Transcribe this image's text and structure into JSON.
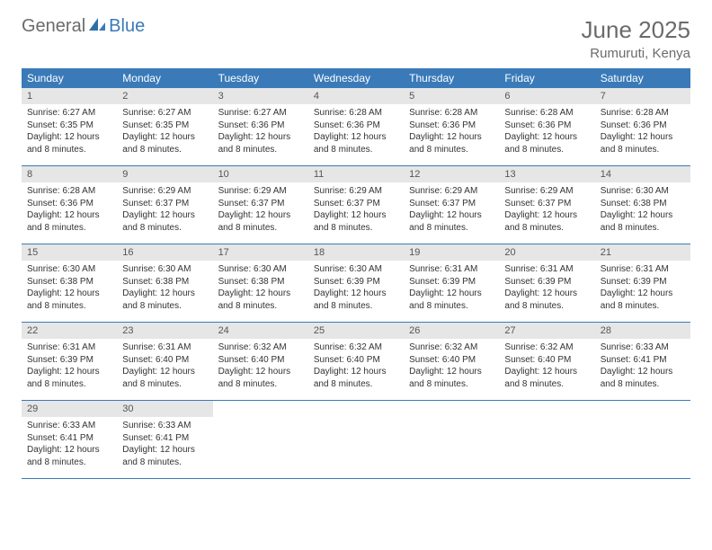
{
  "logo": {
    "general": "General",
    "blue": "Blue"
  },
  "title": {
    "month": "June 2025",
    "location": "Rumuruti, Kenya"
  },
  "colors": {
    "header_bg": "#3a7ab8",
    "header_text": "#ffffff",
    "daynum_bg": "#e6e6e6",
    "daynum_text": "#555555",
    "border": "#3a7ab8",
    "body_text": "#333333",
    "title_text": "#6b6b6b"
  },
  "weekdays": [
    "Sunday",
    "Monday",
    "Tuesday",
    "Wednesday",
    "Thursday",
    "Friday",
    "Saturday"
  ],
  "weeks": [
    [
      {
        "num": "1",
        "sunrise": "6:27 AM",
        "sunset": "6:35 PM",
        "daylight": "12 hours and 8 minutes."
      },
      {
        "num": "2",
        "sunrise": "6:27 AM",
        "sunset": "6:35 PM",
        "daylight": "12 hours and 8 minutes."
      },
      {
        "num": "3",
        "sunrise": "6:27 AM",
        "sunset": "6:36 PM",
        "daylight": "12 hours and 8 minutes."
      },
      {
        "num": "4",
        "sunrise": "6:28 AM",
        "sunset": "6:36 PM",
        "daylight": "12 hours and 8 minutes."
      },
      {
        "num": "5",
        "sunrise": "6:28 AM",
        "sunset": "6:36 PM",
        "daylight": "12 hours and 8 minutes."
      },
      {
        "num": "6",
        "sunrise": "6:28 AM",
        "sunset": "6:36 PM",
        "daylight": "12 hours and 8 minutes."
      },
      {
        "num": "7",
        "sunrise": "6:28 AM",
        "sunset": "6:36 PM",
        "daylight": "12 hours and 8 minutes."
      }
    ],
    [
      {
        "num": "8",
        "sunrise": "6:28 AM",
        "sunset": "6:36 PM",
        "daylight": "12 hours and 8 minutes."
      },
      {
        "num": "9",
        "sunrise": "6:29 AM",
        "sunset": "6:37 PM",
        "daylight": "12 hours and 8 minutes."
      },
      {
        "num": "10",
        "sunrise": "6:29 AM",
        "sunset": "6:37 PM",
        "daylight": "12 hours and 8 minutes."
      },
      {
        "num": "11",
        "sunrise": "6:29 AM",
        "sunset": "6:37 PM",
        "daylight": "12 hours and 8 minutes."
      },
      {
        "num": "12",
        "sunrise": "6:29 AM",
        "sunset": "6:37 PM",
        "daylight": "12 hours and 8 minutes."
      },
      {
        "num": "13",
        "sunrise": "6:29 AM",
        "sunset": "6:37 PM",
        "daylight": "12 hours and 8 minutes."
      },
      {
        "num": "14",
        "sunrise": "6:30 AM",
        "sunset": "6:38 PM",
        "daylight": "12 hours and 8 minutes."
      }
    ],
    [
      {
        "num": "15",
        "sunrise": "6:30 AM",
        "sunset": "6:38 PM",
        "daylight": "12 hours and 8 minutes."
      },
      {
        "num": "16",
        "sunrise": "6:30 AM",
        "sunset": "6:38 PM",
        "daylight": "12 hours and 8 minutes."
      },
      {
        "num": "17",
        "sunrise": "6:30 AM",
        "sunset": "6:38 PM",
        "daylight": "12 hours and 8 minutes."
      },
      {
        "num": "18",
        "sunrise": "6:30 AM",
        "sunset": "6:39 PM",
        "daylight": "12 hours and 8 minutes."
      },
      {
        "num": "19",
        "sunrise": "6:31 AM",
        "sunset": "6:39 PM",
        "daylight": "12 hours and 8 minutes."
      },
      {
        "num": "20",
        "sunrise": "6:31 AM",
        "sunset": "6:39 PM",
        "daylight": "12 hours and 8 minutes."
      },
      {
        "num": "21",
        "sunrise": "6:31 AM",
        "sunset": "6:39 PM",
        "daylight": "12 hours and 8 minutes."
      }
    ],
    [
      {
        "num": "22",
        "sunrise": "6:31 AM",
        "sunset": "6:39 PM",
        "daylight": "12 hours and 8 minutes."
      },
      {
        "num": "23",
        "sunrise": "6:31 AM",
        "sunset": "6:40 PM",
        "daylight": "12 hours and 8 minutes."
      },
      {
        "num": "24",
        "sunrise": "6:32 AM",
        "sunset": "6:40 PM",
        "daylight": "12 hours and 8 minutes."
      },
      {
        "num": "25",
        "sunrise": "6:32 AM",
        "sunset": "6:40 PM",
        "daylight": "12 hours and 8 minutes."
      },
      {
        "num": "26",
        "sunrise": "6:32 AM",
        "sunset": "6:40 PM",
        "daylight": "12 hours and 8 minutes."
      },
      {
        "num": "27",
        "sunrise": "6:32 AM",
        "sunset": "6:40 PM",
        "daylight": "12 hours and 8 minutes."
      },
      {
        "num": "28",
        "sunrise": "6:33 AM",
        "sunset": "6:41 PM",
        "daylight": "12 hours and 8 minutes."
      }
    ],
    [
      {
        "num": "29",
        "sunrise": "6:33 AM",
        "sunset": "6:41 PM",
        "daylight": "12 hours and 8 minutes."
      },
      {
        "num": "30",
        "sunrise": "6:33 AM",
        "sunset": "6:41 PM",
        "daylight": "12 hours and 8 minutes."
      },
      null,
      null,
      null,
      null,
      null
    ]
  ],
  "labels": {
    "sunrise": "Sunrise:",
    "sunset": "Sunset:",
    "daylight": "Daylight:"
  }
}
